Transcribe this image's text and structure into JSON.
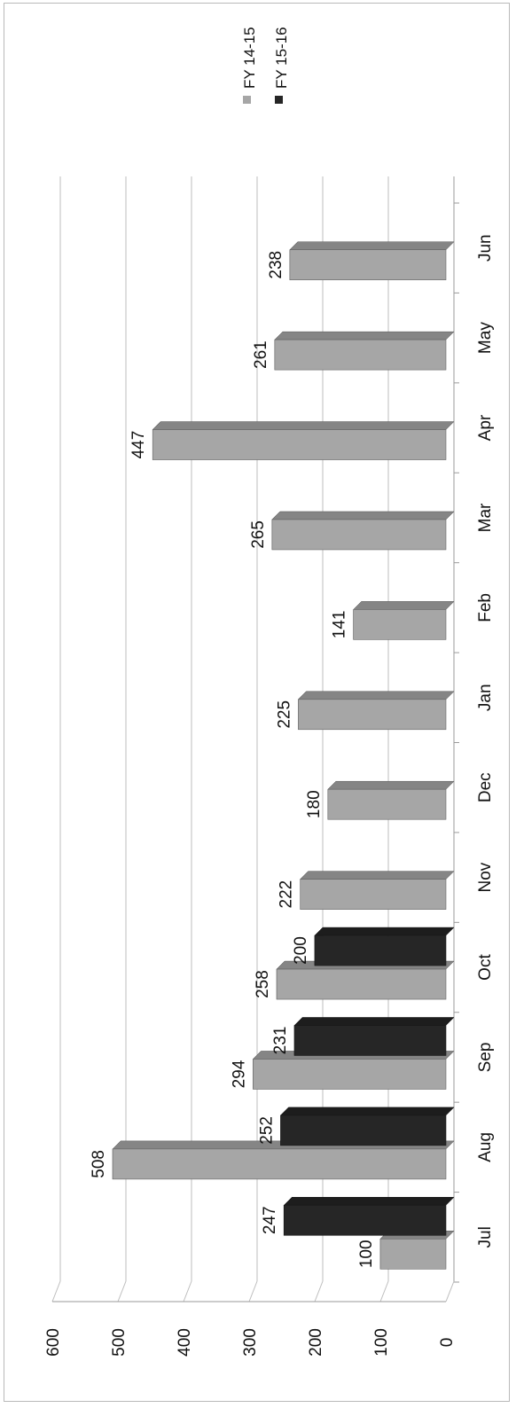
{
  "chart_data": {
    "type": "bar",
    "orientation": "horizontal",
    "style": "3d-clustered",
    "rotation": "rotated 90 degrees counter-clockwise",
    "categories": [
      "Jul",
      "Aug",
      "Sep",
      "Oct",
      "Nov",
      "Dec",
      "Jan",
      "Feb",
      "Mar",
      "Apr",
      "May",
      "Jun"
    ],
    "series": [
      {
        "name": "FY 14-15",
        "color": "#a6a6a6",
        "values": [
          100,
          508,
          294,
          258,
          222,
          180,
          225,
          141,
          265,
          447,
          261,
          238
        ],
        "labels": [
          "100",
          "508",
          "294",
          "258",
          "222",
          "180",
          "225",
          "141",
          "265",
          "447",
          "261",
          "238"
        ]
      },
      {
        "name": "FY 15-16",
        "color": "#262626",
        "values": [
          247,
          252,
          231,
          200,
          null,
          null,
          null,
          null,
          null,
          null,
          null,
          null
        ],
        "labels": [
          "247",
          "252",
          "231",
          "200",
          "",
          "",
          "",
          "",
          "",
          "",
          "",
          ""
        ]
      }
    ],
    "value_axis": {
      "min": 0,
      "max": 600,
      "ticks": [
        0,
        100,
        200,
        300,
        400,
        500,
        600
      ],
      "tick_labels": [
        "0",
        "100",
        "200",
        "300",
        "400",
        "500",
        "600"
      ]
    },
    "grid": true,
    "legend_position": "top-right",
    "title": "",
    "xlabel": "",
    "ylabel": ""
  }
}
